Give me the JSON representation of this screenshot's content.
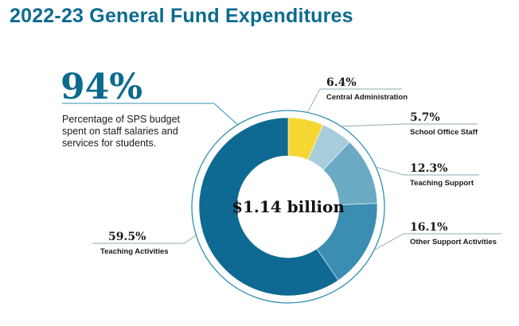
{
  "title": "2022-23 General Fund Expenditures",
  "highlight": {
    "value": "94%",
    "description": "Percentage of SPS budget spent on staff salaries and services for students."
  },
  "colors": {
    "title": "#0b6b8f",
    "ring_outline": "#2f8fb0"
  },
  "chart_data": {
    "type": "pie",
    "donut": true,
    "center_label": "$1.14 billion",
    "series": [
      {
        "name": "Central Administration",
        "value": 6.4,
        "label": "6.4%",
        "color": "#f5d733"
      },
      {
        "name": "School Office Staff",
        "value": 5.7,
        "label": "5.7%",
        "color": "#a7ccdb"
      },
      {
        "name": "Teaching Support",
        "value": 12.3,
        "label": "12.3%",
        "color": "#6aaac3"
      },
      {
        "name": "Other Support Activities",
        "value": 16.1,
        "label": "16.1%",
        "color": "#3b8db1"
      },
      {
        "name": "Teaching Activities",
        "value": 59.5,
        "label": "59.5%",
        "color": "#0e6a93"
      }
    ]
  }
}
